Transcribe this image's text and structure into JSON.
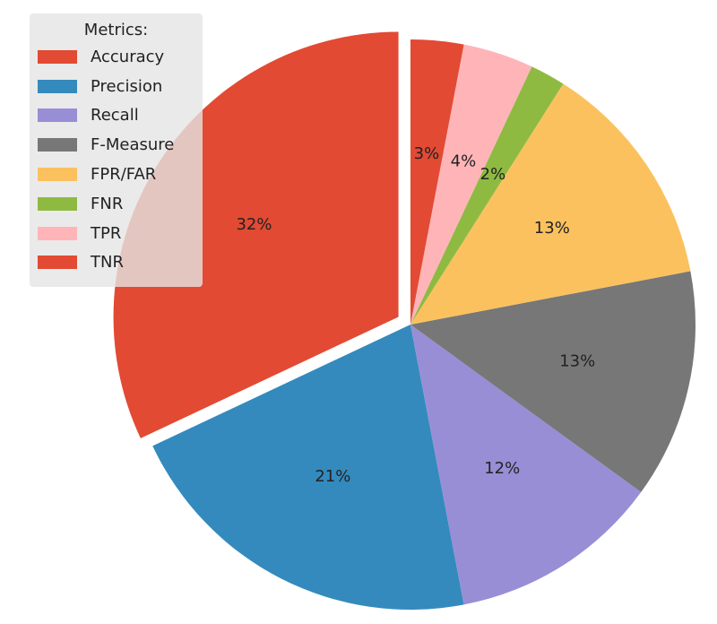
{
  "chart_data": {
    "type": "pie",
    "legend_title": "Metrics:",
    "legend_position": "top-left",
    "start_angle": 90,
    "direction": "counterclockwise",
    "slices": [
      {
        "name": "Accuracy",
        "value": 32,
        "label": "32%",
        "color": "#E24A33",
        "exploded": true
      },
      {
        "name": "Precision",
        "value": 21,
        "label": "21%",
        "color": "#348ABD"
      },
      {
        "name": "Recall",
        "value": 12,
        "label": "12%",
        "color": "#988ED5"
      },
      {
        "name": "F-Measure",
        "value": 13,
        "label": "13%",
        "color": "#777777"
      },
      {
        "name": "FPR/FAR",
        "value": 13,
        "label": "13%",
        "color": "#FBC15E"
      },
      {
        "name": "FNR",
        "value": 2,
        "label": "2%",
        "color": "#8EBA42"
      },
      {
        "name": "TPR",
        "value": 4,
        "label": "4%",
        "color": "#FFB5B8"
      },
      {
        "name": "TNR",
        "value": 3,
        "label": "3%",
        "color": "#E24A33"
      }
    ]
  }
}
